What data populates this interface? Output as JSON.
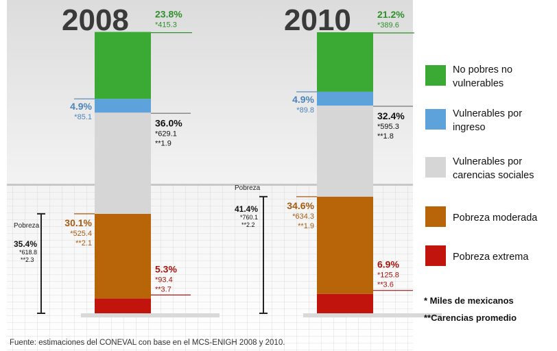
{
  "chart_data": {
    "type": "bar",
    "stacked": true,
    "categories": [
      "2008",
      "2010"
    ],
    "series": [
      {
        "name": "Pobreza extrema",
        "color": "#c0140c",
        "values": [
          5.3,
          6.9
        ],
        "miles": [
          "*93.4",
          "*125.8"
        ],
        "carencias": [
          "**3.7",
          "**3.6"
        ]
      },
      {
        "name": "Pobreza moderada",
        "color": "#b8650a",
        "values": [
          30.1,
          34.6
        ],
        "miles": [
          "*525.4",
          "*634.3"
        ],
        "carencias": [
          "**2.1",
          "**1.9"
        ]
      },
      {
        "name": "Vulnerables por carencias sociales",
        "color": "#d6d6d6",
        "values": [
          36.0,
          32.4
        ],
        "miles": [
          "*629.1",
          "*595.3"
        ],
        "carencias": [
          "**1.9",
          "**1.8"
        ]
      },
      {
        "name": "Vulnerables por ingreso",
        "color": "#5ea2dc",
        "values": [
          4.9,
          4.9
        ],
        "miles": [
          "*85.1",
          "*89.8"
        ],
        "carencias": [
          "",
          ""
        ]
      },
      {
        "name": "No pobres no vulnerables",
        "color": "#3aaa35",
        "values": [
          23.8,
          21.2
        ],
        "miles": [
          "*415.3",
          "*389.6"
        ],
        "carencias": [
          "",
          ""
        ]
      }
    ],
    "pct_labels": [
      [
        "5.3%",
        "6.9%"
      ],
      [
        "30.1%",
        "34.6%"
      ],
      [
        "36.0%",
        "32.4%"
      ],
      [
        "4.9%",
        "4.9%"
      ],
      [
        "23.8%",
        "21.2%"
      ]
    ],
    "pobreza": {
      "label": "Pobreza",
      "pct": [
        "35.4%",
        "41.4%"
      ],
      "miles": [
        "*618.8",
        "*760.1"
      ],
      "carencias": [
        "**2.3",
        "**2.2"
      ]
    },
    "legend_labels": [
      "No pobres no vulnerables",
      "Vulnerables por ingreso",
      "Vulnerables por carencias sociales",
      "Pobreza moderada",
      "Pobreza extrema"
    ],
    "notes": [
      "* Miles de mexicanos",
      "**Carencias promedio"
    ],
    "source": "Fuente: estimaciones del CONEVAL con base en el MCS-ENIGH 2008 y 2010."
  }
}
